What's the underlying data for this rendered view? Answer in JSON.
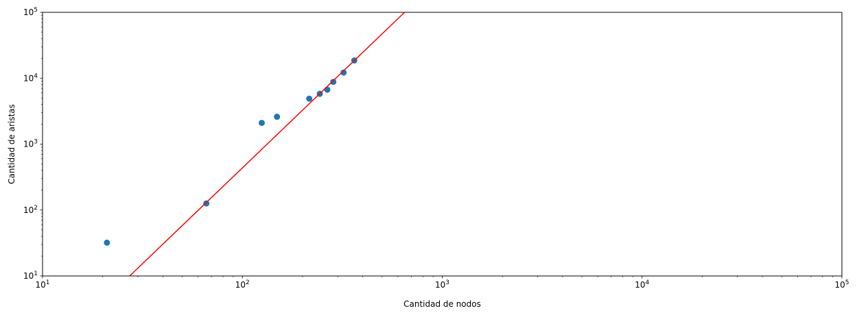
{
  "chart_data": {
    "type": "scatter",
    "title": "",
    "xlabel": "Cantidad de nodos",
    "ylabel": "Cantidad de aristas",
    "xscale": "log",
    "yscale": "log",
    "xlim": [
      10,
      100000
    ],
    "ylim": [
      10,
      100000
    ],
    "grid": false,
    "x_ticks": [
      {
        "value": 10,
        "base": "10",
        "exp": "1"
      },
      {
        "value": 100,
        "base": "10",
        "exp": "2"
      },
      {
        "value": 1000,
        "base": "10",
        "exp": "3"
      },
      {
        "value": 10000,
        "base": "10",
        "exp": "4"
      },
      {
        "value": 100000,
        "base": "10",
        "exp": "5"
      }
    ],
    "y_ticks": [
      {
        "value": 10,
        "base": "10",
        "exp": "1"
      },
      {
        "value": 100,
        "base": "10",
        "exp": "2"
      },
      {
        "value": 1000,
        "base": "10",
        "exp": "3"
      },
      {
        "value": 10000,
        "base": "10",
        "exp": "4"
      },
      {
        "value": 100000,
        "base": "10",
        "exp": "5"
      }
    ],
    "series": [
      {
        "kind": "scatter",
        "color": "#1f77b4",
        "points": [
          {
            "x": 21,
            "y": 32
          },
          {
            "x": 66,
            "y": 126
          },
          {
            "x": 125,
            "y": 2100
          },
          {
            "x": 149,
            "y": 2600
          },
          {
            "x": 216,
            "y": 4900
          },
          {
            "x": 244,
            "y": 5800
          },
          {
            "x": 266,
            "y": 6700
          },
          {
            "x": 285,
            "y": 8800
          },
          {
            "x": 321,
            "y": 12200
          },
          {
            "x": 363,
            "y": 18600
          }
        ]
      },
      {
        "kind": "line",
        "color": "#ff0000",
        "points": [
          {
            "x": 27.3,
            "y": 10
          },
          {
            "x": 648,
            "y": 100000
          }
        ]
      }
    ]
  }
}
